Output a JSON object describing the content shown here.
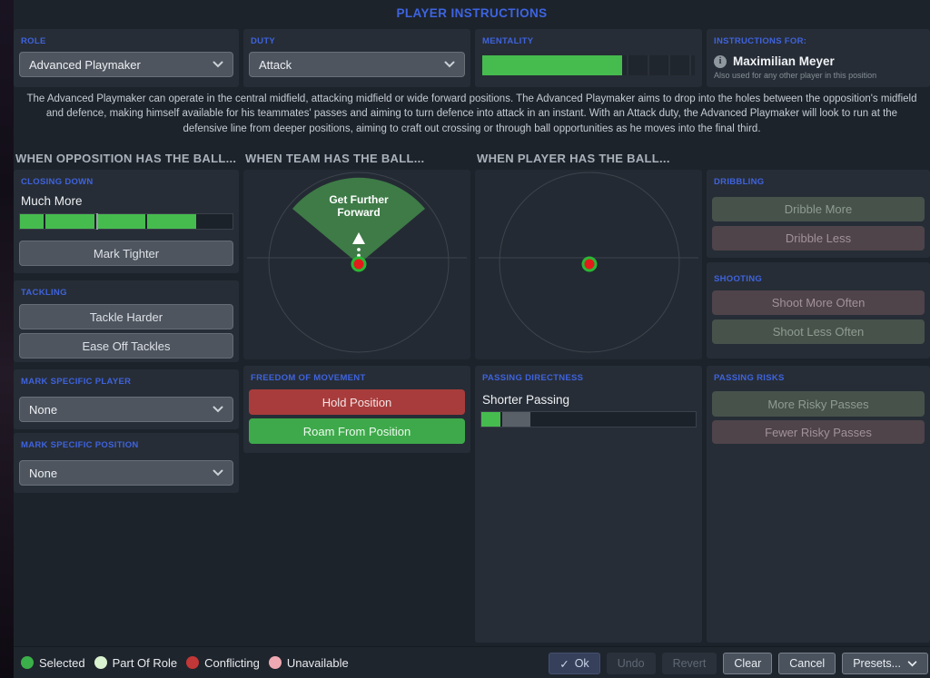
{
  "title": "PLAYER INSTRUCTIONS",
  "header": {
    "role": {
      "label": "ROLE",
      "value": "Advanced Playmaker"
    },
    "duty": {
      "label": "DUTY",
      "value": "Attack"
    },
    "mentality": {
      "label": "MENTALITY",
      "fill_pct": 66
    },
    "instructions_for": {
      "label": "INSTRUCTIONS FOR:",
      "player": "Maximilian Meyer",
      "note": "Also used for any other player in this position"
    }
  },
  "description": "The Advanced Playmaker can operate in the central midfield, attacking midfield or wide forward positions. The Advanced Playmaker aims to drop into the holes between the opposition's midfield and defence, making himself available for his teammates' passes and aiming to turn defence into attack in an instant. With an Attack duty, the Advanced Playmaker will look to run at the defensive line from deeper positions, aiming to craft out crossing or through ball opportunities as he moves into the final third.",
  "sections": {
    "opposition": "WHEN OPPOSITION HAS THE BALL...",
    "team": "WHEN TEAM HAS THE BALL...",
    "player": "WHEN PLAYER HAS THE BALL..."
  },
  "closing_down": {
    "label": "CLOSING DOWN",
    "value": "Much More",
    "button": "Mark Tighter",
    "bar": {
      "segments": [
        {
          "pct": 11,
          "cls": "green"
        },
        {
          "pct": 24,
          "cls": "green"
        },
        {
          "pct": 24,
          "cls": "green"
        },
        {
          "pct": 24,
          "cls": "green"
        },
        {
          "pct": 17,
          "cls": "empty"
        }
      ],
      "marker_pct": 36
    }
  },
  "tackling": {
    "label": "TACKLING",
    "buttons": [
      "Tackle Harder",
      "Ease Off Tackles"
    ]
  },
  "mark_player": {
    "label": "MARK SPECIFIC PLAYER",
    "value": "None"
  },
  "mark_position": {
    "label": "MARK SPECIFIC POSITION",
    "value": "None"
  },
  "team_pitch": {
    "annotation": [
      "Get Further",
      "Forward"
    ]
  },
  "freedom": {
    "label": "FREEDOM OF MOVEMENT",
    "hold": "Hold Position",
    "roam": "Roam From Position"
  },
  "passing_directness": {
    "label": "PASSING DIRECTNESS",
    "value": "Shorter Passing",
    "bar": {
      "segments": [
        {
          "pct": 9,
          "cls": "green"
        },
        {
          "pct": 14,
          "cls": "gray"
        },
        {
          "pct": 77,
          "cls": "empty"
        }
      ]
    }
  },
  "dribbling": {
    "label": "DRIBBLING",
    "buttons": [
      "Dribble More",
      "Dribble Less"
    ]
  },
  "shooting": {
    "label": "SHOOTING",
    "buttons": [
      "Shoot More Often",
      "Shoot Less Often"
    ]
  },
  "passing_risks": {
    "label": "PASSING RISKS",
    "buttons": [
      "More Risky Passes",
      "Fewer Risky Passes"
    ]
  },
  "legend": {
    "items": [
      {
        "label": "Selected",
        "color": "#3bb04a"
      },
      {
        "label": "Part Of Role",
        "color": "#d9f2cf"
      },
      {
        "label": "Conflicting",
        "color": "#c23737"
      },
      {
        "label": "Unavailable",
        "color": "#efa9b2"
      }
    ]
  },
  "footer": {
    "ok": "Ok",
    "undo": "Undo",
    "revert": "Revert",
    "clear": "Clear",
    "cancel": "Cancel",
    "presets": "Presets..."
  },
  "colors": {
    "accent_blue": "#3d64e0",
    "label_blue": "#3f63dd",
    "bar_green": "#46bc4f",
    "hold_red": "#a83c3c",
    "roam_green": "#3ea94b",
    "wedge_green": "#3e7b47",
    "dot_red": "#e31b1b",
    "dot_ring_green": "#2ab834"
  }
}
